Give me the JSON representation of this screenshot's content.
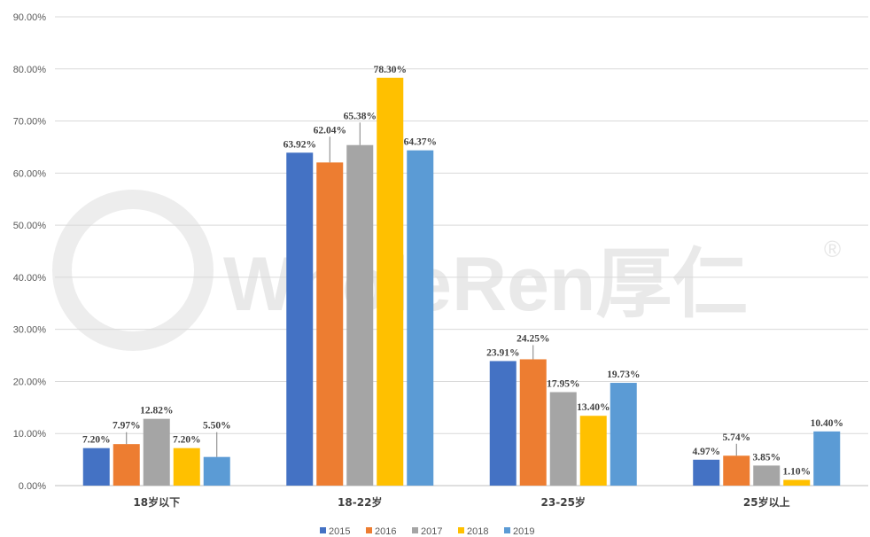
{
  "chart_data": {
    "type": "bar",
    "categories": [
      "18岁以下",
      "18-22岁",
      "23-25岁",
      "25岁以上"
    ],
    "series": [
      {
        "name": "2015",
        "color": "#4472c4",
        "values": [
          7.2,
          63.92,
          23.91,
          4.97
        ],
        "labels": [
          "7.20%",
          "63.92%",
          "23.91%",
          "4.97%"
        ]
      },
      {
        "name": "2016",
        "color": "#ed7d31",
        "values": [
          7.97,
          62.04,
          24.25,
          5.74
        ],
        "labels": [
          "7.97%",
          "62.04%",
          "24.25%",
          "5.74%"
        ]
      },
      {
        "name": "2017",
        "color": "#a5a5a5",
        "values": [
          12.82,
          65.38,
          17.95,
          3.85
        ],
        "labels": [
          "12.82%",
          "65.38%",
          "17.95%",
          "3.85%"
        ]
      },
      {
        "name": "2018",
        "color": "#ffc000",
        "values": [
          7.2,
          78.3,
          13.4,
          1.1
        ],
        "labels": [
          "7.20%",
          "78.30%",
          "13.40%",
          "1.10%"
        ]
      },
      {
        "name": "2019",
        "color": "#5b9bd5",
        "values": [
          5.5,
          64.37,
          19.73,
          10.4
        ],
        "labels": [
          "5.50%",
          "64.37%",
          "19.73%",
          "10.40%"
        ]
      }
    ],
    "yticks": [
      "0.00%",
      "10.00%",
      "20.00%",
      "30.00%",
      "40.00%",
      "50.00%",
      "60.00%",
      "70.00%",
      "80.00%",
      "90.00%"
    ],
    "ylim": [
      0,
      90
    ],
    "grid": true,
    "legend": "bottom",
    "title": "",
    "xlabel": "",
    "ylabel": ""
  },
  "watermark": {
    "text": "WholeRen厚仁",
    "mark": "®"
  }
}
